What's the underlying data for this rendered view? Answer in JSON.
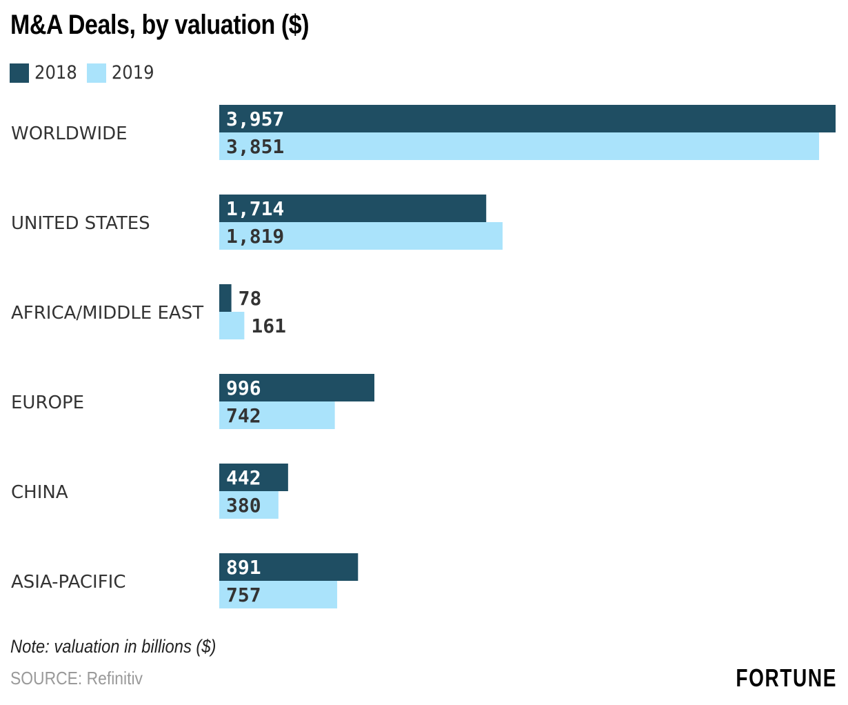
{
  "chart_data": {
    "type": "bar",
    "orientation": "horizontal",
    "title": "M&A Deals, by valuation ($)",
    "categories": [
      "WORLDWIDE",
      "UNITED STATES",
      "AFRICA/MIDDLE EAST",
      "EUROPE",
      "CHINA",
      "ASIA-PACIFIC"
    ],
    "series": [
      {
        "name": "2018",
        "color": "#1f4e63",
        "values": [
          3957,
          1714,
          78,
          996,
          442,
          891
        ],
        "labels": [
          "3,957",
          "1,714",
          "78",
          "996",
          "442",
          "891"
        ]
      },
      {
        "name": "2019",
        "color": "#aae3fb",
        "values": [
          3851,
          1819,
          161,
          742,
          380,
          757
        ],
        "labels": [
          "3,851",
          "1,819",
          "161",
          "742",
          "380",
          "757"
        ]
      }
    ],
    "xlim": [
      0,
      3957
    ],
    "grid": false,
    "legend": "top-left",
    "note": "Note: valuation in billions ($)",
    "source": "SOURCE: Refinitiv"
  },
  "brand": "FORTUNE"
}
